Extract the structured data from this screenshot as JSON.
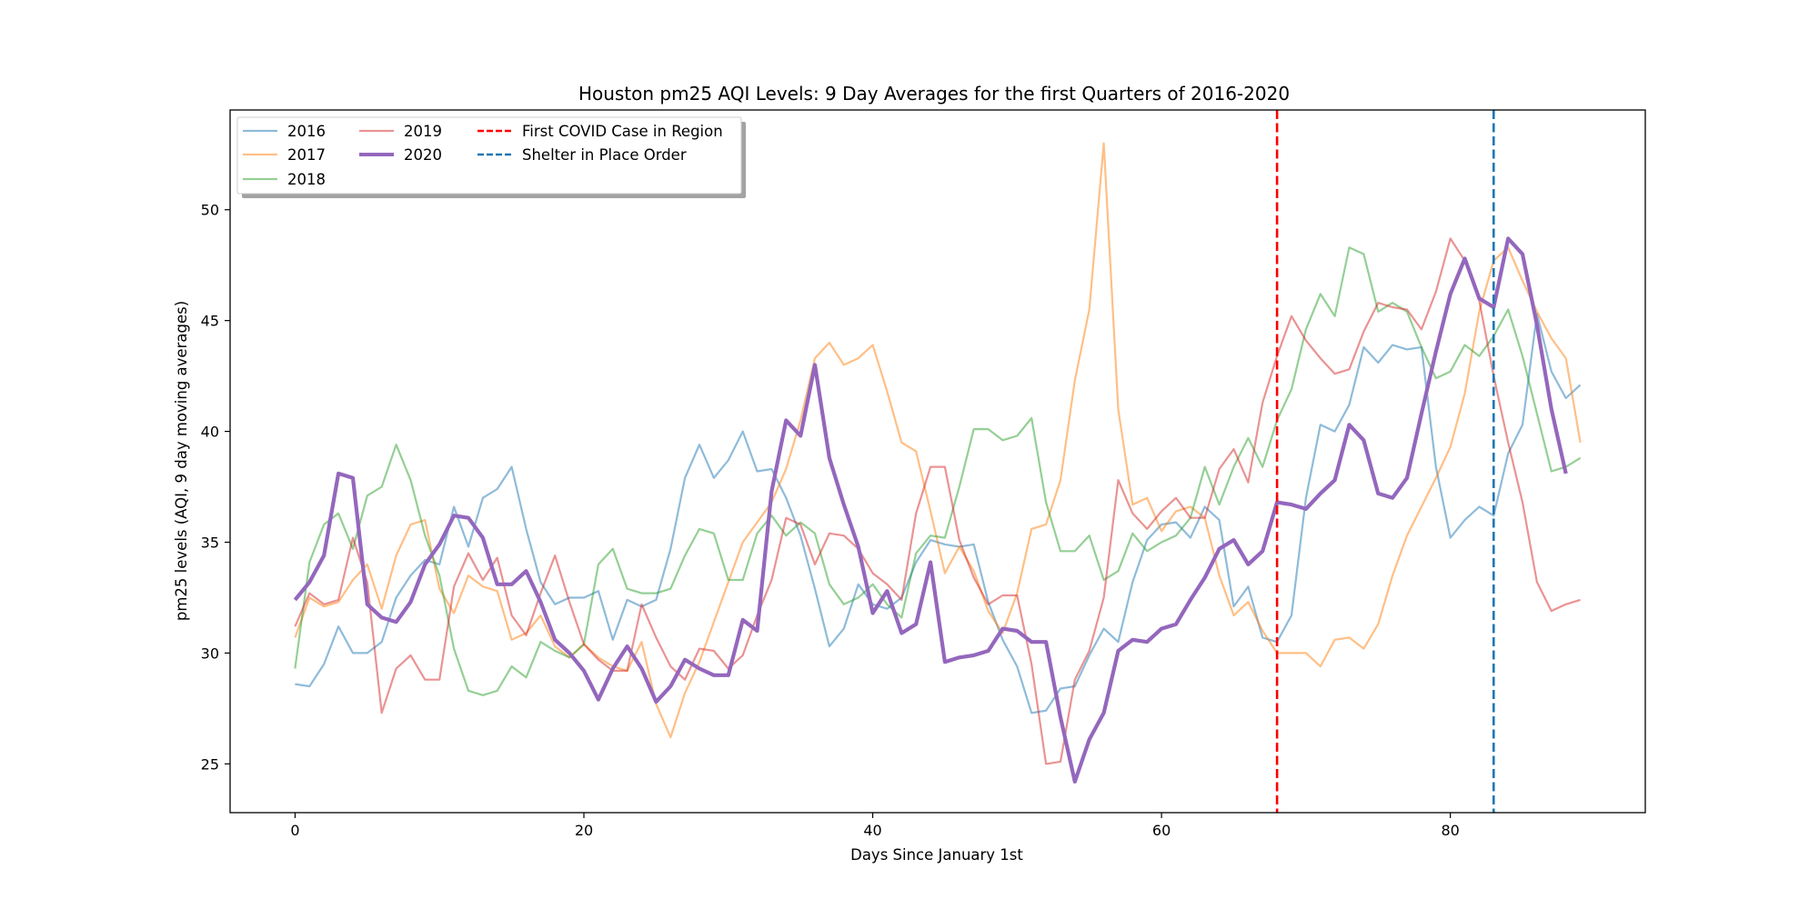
{
  "chart_data": {
    "type": "line",
    "title": "Houston pm25 AQI Levels: 9 Day Averages for the first Quarters of 2016-2020",
    "xlabel": "Days Since January 1st",
    "ylabel": "pm25 levels (AQI, 9 day moving averages)",
    "xlim": [
      -4.5,
      93.5
    ],
    "ylim": [
      22.8,
      54.5
    ],
    "xticks": [
      0,
      20,
      40,
      60,
      80
    ],
    "yticks": [
      25,
      30,
      35,
      40,
      45,
      50
    ],
    "grid": false,
    "legend": "top-left",
    "series": [
      {
        "name": "2016",
        "color": "#1f77b4",
        "opacity": 0.5,
        "width": 2.2,
        "values": [
          28.6,
          28.5,
          29.5,
          31.2,
          30.0,
          30.0,
          30.5,
          32.5,
          33.5,
          34.2,
          34.0,
          36.6,
          34.8,
          37.0,
          37.4,
          38.4,
          35.6,
          33.2,
          32.2,
          32.5,
          32.5,
          32.8,
          30.6,
          32.4,
          32.1,
          32.4,
          34.7,
          37.9,
          39.4,
          37.9,
          38.7,
          40.0,
          38.2,
          38.3,
          37.0,
          35.3,
          32.9,
          30.3,
          31.1,
          33.1,
          32.2,
          32.0,
          32.5,
          34.1,
          35.1,
          34.9,
          34.8,
          34.9,
          32.3,
          30.6,
          29.4,
          27.3,
          27.4,
          28.4,
          28.5,
          29.9,
          31.1,
          30.5,
          33.2,
          35.1,
          35.8,
          35.9,
          35.2,
          36.6,
          36.0,
          32.1,
          33.0,
          30.7,
          30.5,
          31.7,
          37.0,
          40.3,
          40.0,
          41.2,
          43.8,
          43.1,
          43.9,
          43.7,
          43.8,
          38.4,
          35.2,
          36.0,
          36.6,
          36.2,
          39.0,
          40.3,
          45.3,
          42.7,
          41.5,
          42.1
        ]
      },
      {
        "name": "2017",
        "color": "#ff7f0e",
        "opacity": 0.5,
        "width": 2.2,
        "values": [
          30.7,
          32.5,
          32.1,
          32.3,
          33.3,
          34.0,
          32.0,
          34.4,
          35.8,
          36.0,
          32.9,
          31.8,
          33.5,
          33.0,
          32.8,
          30.6,
          30.9,
          31.7,
          30.3,
          29.8,
          30.4,
          29.8,
          29.4,
          29.2,
          30.5,
          27.7,
          26.2,
          28.2,
          29.6,
          31.4,
          33.2,
          35.0,
          35.9,
          36.8,
          38.3,
          40.5,
          43.3,
          44.0,
          43.0,
          43.3,
          43.9,
          41.8,
          39.5,
          39.1,
          36.4,
          33.6,
          34.8,
          33.7,
          31.9,
          30.9,
          32.7,
          35.6,
          35.8,
          37.8,
          42.3,
          45.5,
          53.0,
          41.0,
          36.7,
          37.0,
          35.5,
          36.4,
          36.6,
          36.1,
          33.5,
          31.7,
          32.3,
          31.0,
          30.0,
          30.0,
          30.0,
          29.4,
          30.6,
          30.7,
          30.2,
          31.3,
          33.5,
          35.3,
          36.6,
          37.9,
          39.3,
          41.7,
          45.4,
          47.7,
          48.3,
          46.8,
          45.4,
          44.2,
          43.3,
          39.5
        ]
      },
      {
        "name": "2018",
        "color": "#2ca02c",
        "opacity": 0.5,
        "width": 2.2,
        "values": [
          29.3,
          34.1,
          35.8,
          36.3,
          34.7,
          37.1,
          37.5,
          39.4,
          37.8,
          35.3,
          33.5,
          30.2,
          28.3,
          28.1,
          28.3,
          29.4,
          28.9,
          30.5,
          30.1,
          29.8,
          30.4,
          34.0,
          34.7,
          32.9,
          32.7,
          32.7,
          32.9,
          34.4,
          35.6,
          35.4,
          33.3,
          33.3,
          35.4,
          36.2,
          35.3,
          35.9,
          35.4,
          33.1,
          32.2,
          32.5,
          33.1,
          32.2,
          31.6,
          34.5,
          35.3,
          35.2,
          37.5,
          40.1,
          40.1,
          39.6,
          39.8,
          40.6,
          36.8,
          34.6,
          34.6,
          35.3,
          33.3,
          33.7,
          35.4,
          34.6,
          35.0,
          35.3,
          36.1,
          38.4,
          36.7,
          38.4,
          39.7,
          38.4,
          40.5,
          41.9,
          44.6,
          46.2,
          45.2,
          48.3,
          48.0,
          45.4,
          45.8,
          45.4,
          43.8,
          42.4,
          42.7,
          43.9,
          43.4,
          44.3,
          45.5,
          43.4,
          40.8,
          38.2,
          38.4,
          38.8
        ]
      },
      {
        "name": "2019",
        "color": "#d62728",
        "opacity": 0.5,
        "width": 2.2,
        "values": [
          31.2,
          32.7,
          32.2,
          32.4,
          35.2,
          33.2,
          27.3,
          29.3,
          29.9,
          28.8,
          28.8,
          33.0,
          34.5,
          33.3,
          34.3,
          31.7,
          30.8,
          32.7,
          34.4,
          32.3,
          30.4,
          29.7,
          29.2,
          29.2,
          32.2,
          30.7,
          29.4,
          28.8,
          30.2,
          30.1,
          29.3,
          29.9,
          31.7,
          33.3,
          36.1,
          35.8,
          34.0,
          35.4,
          35.3,
          34.7,
          33.6,
          33.1,
          32.4,
          36.3,
          38.4,
          38.4,
          35.1,
          33.4,
          32.2,
          32.6,
          32.6,
          29.5,
          25.0,
          25.1,
          28.8,
          30.1,
          32.5,
          37.8,
          36.3,
          35.6,
          36.4,
          37.0,
          36.1,
          36.1,
          38.3,
          39.2,
          37.7,
          41.3,
          43.4,
          45.2,
          44.1,
          43.3,
          42.6,
          42.8,
          44.5,
          45.8,
          45.6,
          45.5,
          44.6,
          46.3,
          48.7,
          47.7,
          45.9,
          42.5,
          39.5,
          36.8,
          33.2,
          31.9,
          32.2,
          32.4
        ]
      },
      {
        "name": "2020",
        "color": "#9467bd",
        "opacity": 1.0,
        "width": 4.2,
        "values": [
          32.4,
          33.2,
          34.4,
          38.1,
          37.9,
          32.2,
          31.6,
          31.4,
          32.3,
          34.0,
          34.9,
          36.2,
          36.1,
          35.2,
          33.1,
          33.1,
          33.7,
          32.3,
          30.6,
          30.0,
          29.2,
          27.9,
          29.3,
          30.3,
          29.3,
          27.8,
          28.5,
          29.7,
          29.3,
          29.0,
          29.0,
          31.5,
          31.0,
          37.3,
          40.5,
          39.8,
          43.0,
          38.8,
          36.7,
          34.8,
          31.8,
          32.8,
          30.9,
          31.3,
          34.1,
          29.6,
          29.8,
          29.9,
          30.1,
          31.1,
          31.0,
          30.5,
          30.5,
          27.1,
          24.2,
          26.1,
          27.3,
          30.1,
          30.6,
          30.5,
          31.1,
          31.3,
          32.4,
          33.4,
          34.7,
          35.1,
          34.0,
          34.6,
          36.8,
          36.7,
          36.5,
          37.2,
          37.8,
          40.3,
          39.6,
          37.2,
          37.0,
          37.9,
          40.8,
          43.6,
          46.2,
          47.8,
          46.0,
          45.6,
          48.7,
          48.0,
          44.8,
          41.0,
          38.1
        ]
      }
    ],
    "vlines": [
      {
        "name": "First COVID Case in Region",
        "x": 68,
        "color": "#ff0000"
      },
      {
        "name": "Shelter in Place Order",
        "x": 83,
        "color": "#1f77b4"
      }
    ]
  }
}
